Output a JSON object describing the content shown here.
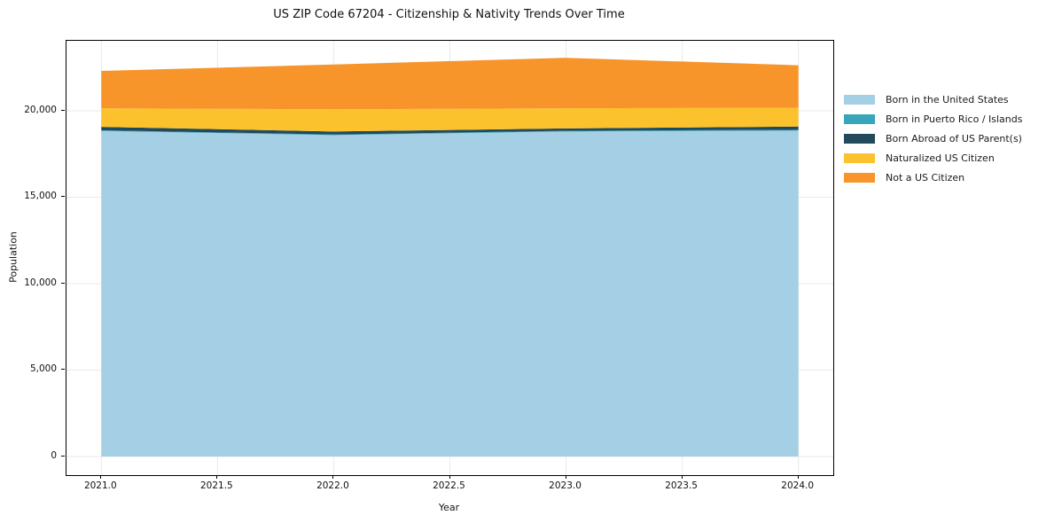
{
  "chart_data": {
    "type": "area",
    "stacked": true,
    "title": "US ZIP Code 67204 - Citizenship & Nativity Trends Over Time",
    "xlabel": "Year",
    "ylabel": "Population",
    "x": [
      2021,
      2022,
      2023,
      2024
    ],
    "series": [
      {
        "name": "Born in the United States",
        "color": "#a5cfe4",
        "values": [
          18830,
          18590,
          18800,
          18850
        ]
      },
      {
        "name": "Born in Puerto Rico / Islands",
        "color": "#38a5bb",
        "values": [
          40,
          35,
          40,
          50
        ]
      },
      {
        "name": "Born Abroad of US Parent(s)",
        "color": "#234a5c",
        "values": [
          200,
          175,
          140,
          185
        ]
      },
      {
        "name": "Naturalized US Citizen",
        "color": "#fcc22d",
        "values": [
          1075,
          1285,
          1165,
          1090
        ]
      },
      {
        "name": "Not a US Citizen",
        "color": "#f7952a",
        "values": [
          2160,
          2595,
          2920,
          2460
        ]
      }
    ],
    "x_ticks": [
      "2021.0",
      "2021.5",
      "2022.0",
      "2022.5",
      "2023.0",
      "2023.5",
      "2024.0"
    ],
    "x_tick_values": [
      2021,
      2021.5,
      2022,
      2022.5,
      2023,
      2023.5,
      2024
    ],
    "y_ticks": [
      "0",
      "5,000",
      "10,000",
      "15,000",
      "20,000"
    ],
    "y_tick_values": [
      0,
      5000,
      10000,
      15000,
      20000
    ],
    "xlim": [
      2020.85,
      2024.15
    ],
    "ylim": [
      -1080,
      24050
    ],
    "grid": true,
    "grid_color": "#e9e9e9",
    "legend_position": "right-outside"
  }
}
